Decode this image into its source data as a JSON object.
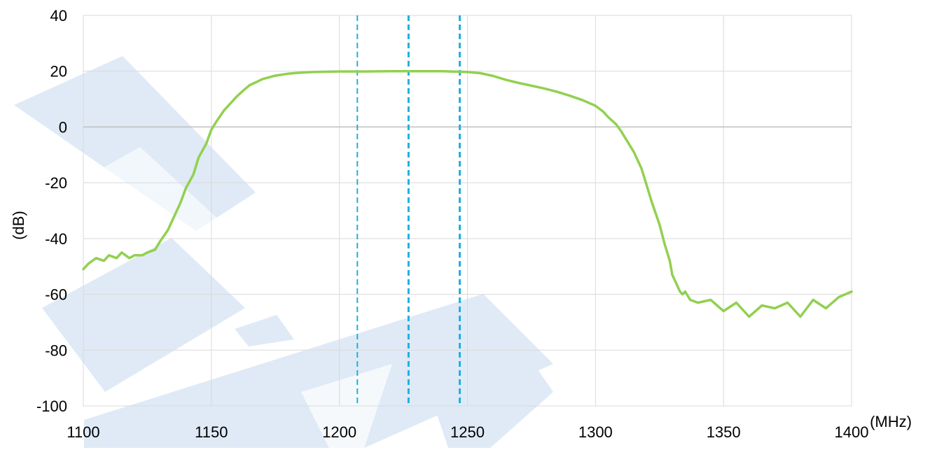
{
  "chart_data": {
    "type": "line",
    "title": "",
    "xlabel": "(MHz)",
    "ylabel": "(dB)",
    "xlim": [
      1100,
      1400
    ],
    "ylim": [
      -100,
      40
    ],
    "x_ticks": [
      1100,
      1150,
      1200,
      1250,
      1300,
      1350,
      1400
    ],
    "y_ticks": [
      40,
      20,
      0,
      -20,
      -40,
      -60,
      -80,
      -100
    ],
    "grid": true,
    "legend": "none",
    "colors": {
      "series": "#92d050",
      "markers": "#1fb0e0",
      "grid": "#d9d9d9",
      "zero_line": "#bfbfbf",
      "watermark": "#dfeaf6"
    },
    "series": [
      {
        "x": [
          1100,
          1102,
          1105,
          1108,
          1110,
          1113,
          1115,
          1118,
          1120,
          1123,
          1125,
          1128,
          1130,
          1133,
          1135,
          1138,
          1140,
          1143,
          1145,
          1148,
          1150,
          1152,
          1155,
          1158,
          1160,
          1163,
          1165,
          1168,
          1170,
          1175,
          1180,
          1185,
          1190,
          1195,
          1200,
          1205,
          1210,
          1220,
          1230,
          1240,
          1250,
          1255,
          1260,
          1265,
          1270,
          1275,
          1280,
          1285,
          1290,
          1295,
          1300,
          1303,
          1305,
          1308,
          1310,
          1312,
          1315,
          1318,
          1320,
          1322,
          1325,
          1327,
          1329,
          1330,
          1331,
          1332,
          1333,
          1334,
          1335,
          1337,
          1340,
          1345,
          1350,
          1355,
          1360,
          1365,
          1370,
          1375,
          1380,
          1385,
          1390,
          1395,
          1400
        ],
        "y": [
          -51,
          -49,
          -47,
          -48,
          -46,
          -47,
          -45,
          -47,
          -46,
          -46,
          -45,
          -44,
          -41,
          -37,
          -33,
          -27,
          -22,
          -17,
          -11,
          -6,
          -1,
          2,
          6,
          9,
          11,
          13.5,
          15,
          16.3,
          17.2,
          18.4,
          19.1,
          19.5,
          19.7,
          19.8,
          19.9,
          19.9,
          19.9,
          20,
          20,
          20,
          19.7,
          19.3,
          18.3,
          16.9,
          15.8,
          14.8,
          13.8,
          12.6,
          11.2,
          9.6,
          7.6,
          5.5,
          3.5,
          1,
          -1.5,
          -4.5,
          -9,
          -15,
          -21,
          -27,
          -35,
          -42,
          -48,
          -53,
          -55,
          -57,
          -59,
          -60,
          -59,
          -62,
          -63,
          -62,
          -66,
          -63,
          -68,
          -64,
          -65,
          -63,
          -68,
          -62,
          -65,
          -61,
          -59
        ]
      }
    ],
    "reference_lines_x": [
      1207,
      1227,
      1247
    ]
  }
}
